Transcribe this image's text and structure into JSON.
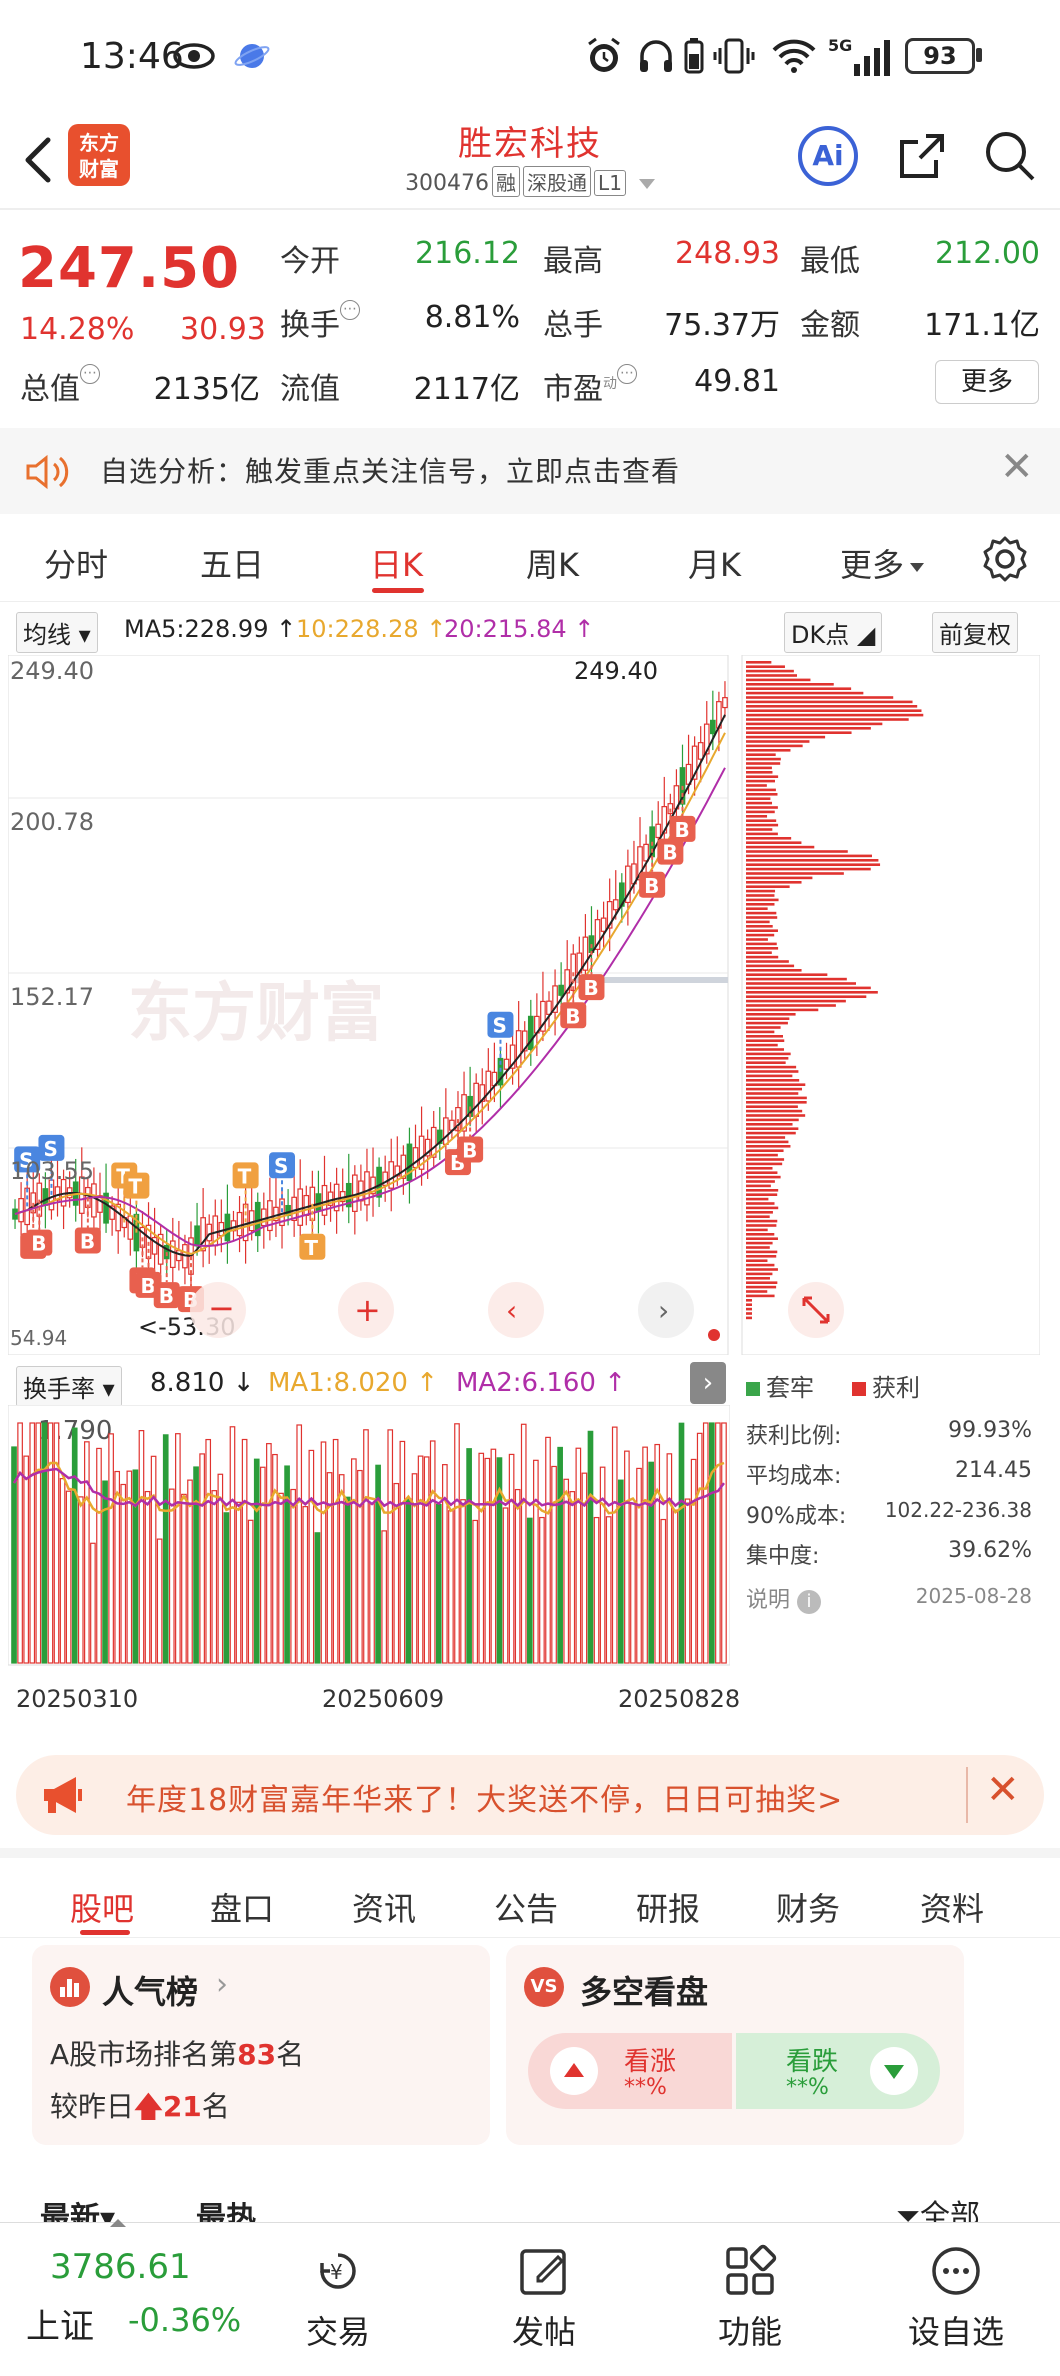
{
  "status_bar": {
    "time": "13:46",
    "battery": "93",
    "network": "5G"
  },
  "header": {
    "stock_name": "胜宏科技",
    "stock_code": "300476",
    "tags": [
      "融",
      "深股通",
      "L1"
    ],
    "logo_text": [
      "东方",
      "财富"
    ],
    "ai_label": "Ai"
  },
  "quote": {
    "price": "247.50",
    "change_pct": "14.28%",
    "change": "30.93",
    "fields": [
      {
        "label": "今开",
        "value": "216.12",
        "color": "green"
      },
      {
        "label": "最高",
        "value": "248.93",
        "color": "red"
      },
      {
        "label": "最低",
        "value": "212.00",
        "color": "green"
      },
      {
        "label": "换手",
        "value": "8.81%",
        "color": "black"
      },
      {
        "label": "总手",
        "value": "75.37万",
        "color": "black"
      },
      {
        "label": "金额",
        "value": "171.1亿",
        "color": "black"
      },
      {
        "label": "总值",
        "value": "2135亿",
        "color": "black"
      },
      {
        "label": "流值",
        "value": "2117亿",
        "color": "black"
      },
      {
        "label": "市盈",
        "value": "49.81",
        "color": "black"
      }
    ],
    "pe_superscript": "动",
    "more_label": "更多"
  },
  "notice": {
    "text": "自选分析：触发重点关注信号，立即点击查看"
  },
  "period_tabs": [
    "分时",
    "五日",
    "日K",
    "周K",
    "月K",
    "更多"
  ],
  "ma_row": {
    "selector": "均线",
    "ma5": "MA5:228.99",
    "ma10": "10:228.28",
    "ma20": "20:215.84",
    "dk": "DK点",
    "adjust": "前复权"
  },
  "kchart": {
    "y_labels": [
      "249.40",
      "200.78",
      "152.17",
      "103.55",
      "54.94"
    ],
    "high_label": "249.40",
    "low_label": "<-53.30",
    "watermark": "东方财富"
  },
  "volume_row": {
    "selector": "换手率",
    "value": "8.810",
    "ma1": "MA1:8.020",
    "ma2": "MA2:6.160",
    "y_label": "1.790"
  },
  "dates": [
    "20250310",
    "20250609",
    "20250828"
  ],
  "chip_panel": {
    "legend_trapped": "套牢",
    "legend_profit": "获利",
    "rows": [
      {
        "label": "获利比例:",
        "value": "99.93%"
      },
      {
        "label": "平均成本:",
        "value": "214.45"
      },
      {
        "label": "90%成本:",
        "value": "102.22-236.38"
      },
      {
        "label": "集中度:",
        "value": "39.62%"
      }
    ],
    "note_label": "说明",
    "date": "2025-08-28"
  },
  "promo": {
    "text": "年度18财富嘉年华来了！大奖送不停，日日可抽奖>"
  },
  "bottom_tabs": [
    "股吧",
    "盘口",
    "资讯",
    "公告",
    "研报",
    "财务",
    "资料"
  ],
  "popularity": {
    "title": "人气榜",
    "rank_prefix": "A股市场排名第",
    "rank": "83",
    "rank_suffix": "名",
    "change_prefix": "较昨日",
    "change": "21",
    "change_suffix": "名"
  },
  "sentiment": {
    "title": "多空看盘",
    "bull_label": "看涨",
    "bull_value": "**%",
    "bear_label": "看跌",
    "bear_value": "**%"
  },
  "feed": {
    "latest": "最新",
    "hot": "最热",
    "all": "全部"
  },
  "bottom_bar": {
    "index_value": "3786.61",
    "index_name": "上证",
    "index_change": "-0.36%",
    "items": [
      "交易",
      "发帖",
      "功能",
      "设自选"
    ]
  }
}
